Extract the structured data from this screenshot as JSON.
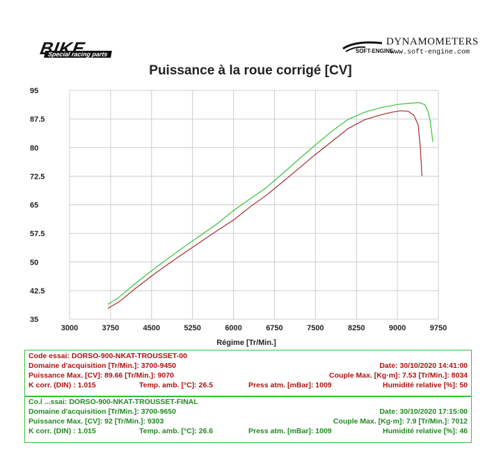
{
  "header": {
    "left_logo": {
      "brand": "BIKE",
      "tagline": "Special racing parts"
    },
    "right_logo": {
      "brand": "DYNAMOMETERS",
      "mark": "SOFT-ENGINE",
      "url": "www.soft-engine.com"
    }
  },
  "colors": {
    "run1": "#a52a2a",
    "run2": "#33c233",
    "grid": "#cccccc"
  },
  "chart_data": {
    "type": "line",
    "title": "Puissance à la roue corrigé [CV]",
    "xlabel": "Régime [Tr/Min.]",
    "ylabel": "",
    "xlim": [
      3000,
      9750
    ],
    "ylim": [
      35,
      95
    ],
    "xticks": [
      3000,
      3750,
      4500,
      5250,
      6000,
      6750,
      7500,
      8250,
      9000,
      9750
    ],
    "yticks": [
      35,
      42.5,
      50,
      57.5,
      65,
      72.5,
      80,
      87.5,
      95
    ],
    "ytick_labels": [
      "35",
      "42.5",
      "50",
      "57.5",
      "65",
      "72.5",
      "80",
      "87.5",
      "95"
    ],
    "grid": true,
    "series": [
      {
        "color": "#a52a2a",
        "x": [
          3700,
          3900,
          4200,
          4500,
          4800,
          5100,
          5400,
          5700,
          6000,
          6300,
          6600,
          6900,
          7200,
          7500,
          7800,
          8100,
          8400,
          8700,
          8900,
          9070,
          9200,
          9300,
          9380,
          9420,
          9450
        ],
        "y": [
          37.8,
          39.5,
          43.0,
          46.3,
          49.4,
          52.4,
          55.3,
          58.2,
          61.0,
          64.4,
          67.5,
          71.0,
          74.6,
          78.2,
          81.6,
          85.0,
          87.3,
          88.6,
          89.3,
          89.66,
          89.5,
          88.5,
          86.0,
          80.0,
          72.5
        ]
      },
      {
        "color": "#33c233",
        "x": [
          3700,
          3900,
          4200,
          4500,
          4800,
          5100,
          5400,
          5700,
          6000,
          6300,
          6600,
          6900,
          7200,
          7500,
          7800,
          8100,
          8400,
          8700,
          9000,
          9200,
          9400,
          9500,
          9560,
          9600,
          9650
        ],
        "y": [
          38.9,
          40.7,
          44.3,
          47.7,
          50.9,
          54.0,
          57.0,
          60.0,
          63.5,
          66.5,
          69.5,
          73.2,
          77.0,
          80.7,
          84.3,
          87.4,
          89.3,
          90.5,
          91.3,
          91.6,
          91.8,
          91.3,
          89.5,
          87.0,
          81.5
        ]
      }
    ]
  },
  "run1": {
    "code": "Code essai: DORSO-900-NKAT-TROUSSET-00",
    "domain": "Domaine d'acquisition [Tr/Min.]: 3700-9450",
    "date": "Date: 30/10/2020   14:41:00",
    "power": "Puissance Max. [CV]: 89.66   [Tr/Min.]: 9070",
    "torque": "Couple Max. [Kg·m]: 7.53   [Tr/Min.]: 8034",
    "kcorr": "K corr. (DIN) : 1.015",
    "temp": "Temp. amb. [°C]: 26.5",
    "press": "Press atm. [mBar]: 1009",
    "hum": "Humidité relative [%]: 50"
  },
  "run2": {
    "code": "Co.l ...ssai: DORSO-900-NKAT-TROUSSET-FINAL",
    "domain": "Domaine d'acquisition [Tr/Min.]: 3700-9650",
    "date": "Date: 30/10/2020   17:15:00",
    "power": "Puissance Max. [CV]: 92   [Tr/Min.]: 9303",
    "torque": "Couple Max. [Kg·m]: 7.9   [Tr/Min.]: 7012",
    "kcorr": "K corr. (DIN) : 1.015",
    "temp": "Temp. amb. [°C]: 26.6",
    "press": "Press atm. [mBar]: 1009",
    "hum": "Humidité relative [%]: 46"
  }
}
